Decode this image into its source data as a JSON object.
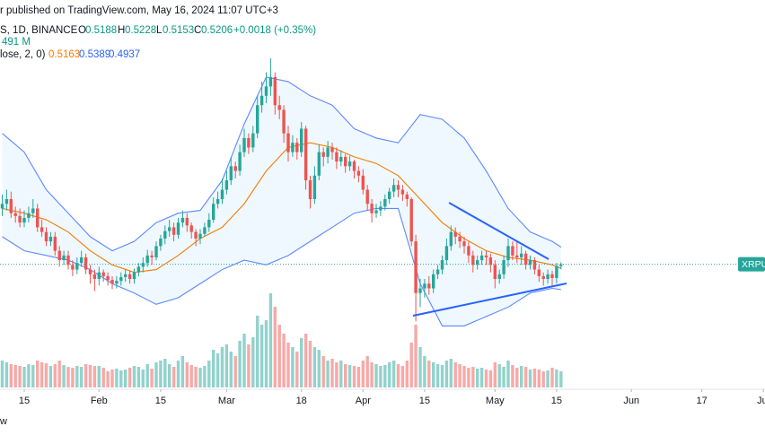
{
  "header": {
    "publisher": "r published on TradingView.com, May 16, 2024 11:07 UTC+3",
    "symbol": "S, 1D, BINANCE",
    "o_label": "O",
    "h_label": "H",
    "l_label": "L",
    "c_label": "C",
    "change": "+0.0018 (+0.35%)",
    "volume": "491 M",
    "bb_label": "lose, 2, 0)",
    "bottom": "w"
  },
  "chart_data": {
    "type": "candlestick",
    "x": [
      "2024-01-10",
      "2024-01-11",
      "2024-01-12",
      "2024-01-13",
      "2024-01-14",
      "2024-01-15",
      "2024-01-16",
      "2024-01-17",
      "2024-01-18",
      "2024-01-19",
      "2024-01-20",
      "2024-01-21",
      "2024-01-22",
      "2024-01-23",
      "2024-01-24",
      "2024-01-25",
      "2024-01-26",
      "2024-01-27",
      "2024-01-28",
      "2024-01-29",
      "2024-01-30",
      "2024-01-31",
      "2024-02-01",
      "2024-02-02",
      "2024-02-03",
      "2024-02-04",
      "2024-02-05",
      "2024-02-06",
      "2024-02-07",
      "2024-02-08",
      "2024-02-09",
      "2024-02-10",
      "2024-02-11",
      "2024-02-12",
      "2024-02-13",
      "2024-02-14",
      "2024-02-15",
      "2024-02-16",
      "2024-02-17",
      "2024-02-18",
      "2024-02-19",
      "2024-02-20",
      "2024-02-21",
      "2024-02-22",
      "2024-02-23",
      "2024-02-24",
      "2024-02-25",
      "2024-02-26",
      "2024-02-27",
      "2024-02-28",
      "2024-02-29",
      "2024-03-01",
      "2024-03-02",
      "2024-03-03",
      "2024-03-04",
      "2024-03-05",
      "2024-03-06",
      "2024-03-07",
      "2024-03-08",
      "2024-03-09",
      "2024-03-10",
      "2024-03-11",
      "2024-03-12",
      "2024-03-13",
      "2024-03-14",
      "2024-03-15",
      "2024-03-16",
      "2024-03-17",
      "2024-03-18",
      "2024-03-19",
      "2024-03-20",
      "2024-03-21",
      "2024-03-22",
      "2024-03-23",
      "2024-03-24",
      "2024-03-25",
      "2024-03-26",
      "2024-03-27",
      "2024-03-28",
      "2024-03-29",
      "2024-03-30",
      "2024-03-31",
      "2024-04-01",
      "2024-04-02",
      "2024-04-03",
      "2024-04-04",
      "2024-04-05",
      "2024-04-06",
      "2024-04-07",
      "2024-04-08",
      "2024-04-09",
      "2024-04-10",
      "2024-04-11",
      "2024-04-12",
      "2024-04-13",
      "2024-04-14",
      "2024-04-15",
      "2024-04-16",
      "2024-04-17",
      "2024-04-18",
      "2024-04-19",
      "2024-04-20",
      "2024-04-21",
      "2024-04-22",
      "2024-04-23",
      "2024-04-24",
      "2024-04-25",
      "2024-04-26",
      "2024-04-27",
      "2024-04-28",
      "2024-04-29",
      "2024-04-30",
      "2024-05-01",
      "2024-05-02",
      "2024-05-03",
      "2024-05-04",
      "2024-05-05",
      "2024-05-06",
      "2024-05-07",
      "2024-05-08",
      "2024-05-09",
      "2024-05-10",
      "2024-05-11",
      "2024-05-12",
      "2024-05-13",
      "2024-05-14",
      "2024-05-15",
      "2024-05-16"
    ],
    "open": [
      0.58,
      0.585,
      0.59,
      0.575,
      0.572,
      0.565,
      0.57,
      0.575,
      0.58,
      0.56,
      0.555,
      0.545,
      0.55,
      0.535,
      0.525,
      0.53,
      0.52,
      0.515,
      0.522,
      0.528,
      0.515,
      0.51,
      0.505,
      0.512,
      0.508,
      0.504,
      0.5,
      0.503,
      0.507,
      0.51,
      0.505,
      0.512,
      0.518,
      0.522,
      0.53,
      0.528,
      0.54,
      0.548,
      0.556,
      0.56,
      0.552,
      0.565,
      0.57,
      0.562,
      0.555,
      0.548,
      0.553,
      0.56,
      0.568,
      0.585,
      0.59,
      0.6,
      0.61,
      0.625,
      0.62,
      0.64,
      0.655,
      0.645,
      0.66,
      0.69,
      0.7,
      0.71,
      0.72,
      0.69,
      0.685,
      0.66,
      0.64,
      0.65,
      0.64,
      0.665,
      0.61,
      0.59,
      0.615,
      0.64,
      0.635,
      0.645,
      0.64,
      0.63,
      0.635,
      0.625,
      0.63,
      0.62,
      0.615,
      0.6,
      0.585,
      0.575,
      0.578,
      0.582,
      0.59,
      0.598,
      0.605,
      0.6,
      0.595,
      0.59,
      0.545,
      0.49,
      0.495,
      0.5,
      0.495,
      0.51,
      0.515,
      0.525,
      0.54,
      0.555,
      0.55,
      0.545,
      0.54,
      0.53,
      0.52,
      0.525,
      0.53,
      0.528,
      0.52,
      0.505,
      0.51,
      0.525,
      0.54,
      0.53,
      0.528,
      0.532,
      0.52,
      0.525,
      0.515,
      0.508,
      0.505,
      0.51,
      0.506,
      0.5188
    ],
    "high": [
      0.595,
      0.6,
      0.598,
      0.582,
      0.58,
      0.578,
      0.582,
      0.59,
      0.585,
      0.568,
      0.56,
      0.555,
      0.555,
      0.54,
      0.535,
      0.535,
      0.525,
      0.528,
      0.535,
      0.532,
      0.52,
      0.515,
      0.518,
      0.515,
      0.512,
      0.508,
      0.508,
      0.512,
      0.515,
      0.514,
      0.516,
      0.522,
      0.528,
      0.536,
      0.535,
      0.545,
      0.552,
      0.562,
      0.568,
      0.565,
      0.57,
      0.578,
      0.575,
      0.565,
      0.558,
      0.558,
      0.565,
      0.575,
      0.592,
      0.598,
      0.612,
      0.62,
      0.635,
      0.63,
      0.648,
      0.665,
      0.66,
      0.668,
      0.7,
      0.715,
      0.725,
      0.74,
      0.725,
      0.7,
      0.69,
      0.668,
      0.658,
      0.655,
      0.672,
      0.668,
      0.615,
      0.625,
      0.648,
      0.645,
      0.652,
      0.65,
      0.645,
      0.642,
      0.638,
      0.636,
      0.632,
      0.625,
      0.622,
      0.605,
      0.59,
      0.585,
      0.588,
      0.595,
      0.602,
      0.612,
      0.61,
      0.605,
      0.598,
      0.592,
      0.552,
      0.505,
      0.505,
      0.508,
      0.515,
      0.52,
      0.53,
      0.548,
      0.562,
      0.56,
      0.555,
      0.55,
      0.545,
      0.535,
      0.53,
      0.535,
      0.535,
      0.532,
      0.525,
      0.515,
      0.53,
      0.548,
      0.545,
      0.545,
      0.54,
      0.535,
      0.53,
      0.528,
      0.52,
      0.512,
      0.515,
      0.514,
      0.522,
      0.5228
    ],
    "low": [
      0.572,
      0.578,
      0.57,
      0.565,
      0.56,
      0.56,
      0.565,
      0.57,
      0.555,
      0.55,
      0.54,
      0.54,
      0.53,
      0.518,
      0.52,
      0.515,
      0.508,
      0.51,
      0.518,
      0.51,
      0.5,
      0.492,
      0.498,
      0.502,
      0.498,
      0.494,
      0.495,
      0.498,
      0.502,
      0.5,
      0.5,
      0.508,
      0.512,
      0.518,
      0.52,
      0.525,
      0.535,
      0.542,
      0.55,
      0.545,
      0.548,
      0.56,
      0.555,
      0.548,
      0.54,
      0.542,
      0.55,
      0.555,
      0.565,
      0.58,
      0.585,
      0.595,
      0.605,
      0.612,
      0.615,
      0.635,
      0.638,
      0.64,
      0.655,
      0.682,
      0.692,
      0.7,
      0.68,
      0.675,
      0.65,
      0.63,
      0.635,
      0.632,
      0.635,
      0.6,
      0.58,
      0.585,
      0.61,
      0.625,
      0.628,
      0.632,
      0.622,
      0.625,
      0.618,
      0.62,
      0.612,
      0.608,
      0.595,
      0.578,
      0.565,
      0.57,
      0.572,
      0.578,
      0.585,
      0.592,
      0.592,
      0.588,
      0.582,
      0.54,
      0.46,
      0.475,
      0.485,
      0.488,
      0.49,
      0.505,
      0.51,
      0.52,
      0.535,
      0.542,
      0.538,
      0.532,
      0.522,
      0.512,
      0.515,
      0.52,
      0.52,
      0.512,
      0.495,
      0.5,
      0.505,
      0.518,
      0.525,
      0.522,
      0.52,
      0.515,
      0.515,
      0.51,
      0.502,
      0.498,
      0.5,
      0.498,
      0.5,
      0.5153
    ],
    "close": [
      0.585,
      0.59,
      0.575,
      0.572,
      0.565,
      0.57,
      0.575,
      0.58,
      0.56,
      0.555,
      0.545,
      0.55,
      0.535,
      0.525,
      0.53,
      0.52,
      0.515,
      0.522,
      0.528,
      0.515,
      0.51,
      0.505,
      0.512,
      0.508,
      0.504,
      0.5,
      0.503,
      0.507,
      0.51,
      0.505,
      0.512,
      0.518,
      0.522,
      0.53,
      0.528,
      0.54,
      0.548,
      0.556,
      0.56,
      0.552,
      0.565,
      0.57,
      0.562,
      0.555,
      0.548,
      0.553,
      0.56,
      0.568,
      0.585,
      0.59,
      0.6,
      0.61,
      0.625,
      0.62,
      0.64,
      0.655,
      0.645,
      0.66,
      0.69,
      0.7,
      0.71,
      0.72,
      0.69,
      0.685,
      0.66,
      0.64,
      0.65,
      0.64,
      0.665,
      0.61,
      0.59,
      0.615,
      0.64,
      0.635,
      0.645,
      0.64,
      0.63,
      0.635,
      0.625,
      0.63,
      0.62,
      0.615,
      0.6,
      0.585,
      0.575,
      0.578,
      0.582,
      0.59,
      0.598,
      0.605,
      0.6,
      0.595,
      0.59,
      0.545,
      0.49,
      0.495,
      0.5,
      0.495,
      0.51,
      0.515,
      0.525,
      0.54,
      0.555,
      0.55,
      0.545,
      0.54,
      0.53,
      0.52,
      0.525,
      0.53,
      0.528,
      0.52,
      0.505,
      0.51,
      0.525,
      0.54,
      0.53,
      0.528,
      0.532,
      0.52,
      0.525,
      0.515,
      0.508,
      0.505,
      0.51,
      0.506,
      0.5188,
      0.5206
    ],
    "volume": [
      300,
      280,
      260,
      250,
      240,
      230,
      260,
      250,
      300,
      280,
      270,
      240,
      260,
      300,
      250,
      230,
      220,
      240,
      230,
      260,
      250,
      240,
      240,
      220,
      180,
      200,
      210,
      190,
      200,
      220,
      240,
      230,
      200,
      260,
      210,
      280,
      300,
      320,
      260,
      230,
      300,
      350,
      280,
      250,
      230,
      220,
      240,
      300,
      420,
      380,
      450,
      480,
      400,
      350,
      520,
      600,
      480,
      560,
      800,
      700,
      750,
      1050,
      900,
      700,
      600,
      500,
      450,
      400,
      550,
      600,
      520,
      450,
      420,
      350,
      300,
      320,
      280,
      300,
      260,
      250,
      240,
      230,
      300,
      350,
      280,
      260,
      240,
      250,
      280,
      300,
      260,
      240,
      300,
      500,
      700,
      450,
      350,
      300,
      280,
      260,
      250,
      300,
      320,
      280,
      260,
      240,
      220,
      230,
      210,
      220,
      200,
      190,
      280,
      260,
      230,
      300,
      250,
      220,
      240,
      230,
      200,
      210,
      200,
      180,
      190,
      220,
      200,
      180
    ],
    "bands": {
      "x": [
        "2024-01-10",
        "2024-01-15",
        "2024-01-20",
        "2024-01-25",
        "2024-01-30",
        "2024-02-04",
        "2024-02-09",
        "2024-02-14",
        "2024-02-19",
        "2024-02-24",
        "2024-02-29",
        "2024-03-05",
        "2024-03-10",
        "2024-03-15",
        "2024-03-20",
        "2024-03-25",
        "2024-03-30",
        "2024-04-04",
        "2024-04-09",
        "2024-04-14",
        "2024-04-19",
        "2024-04-24",
        "2024-04-29",
        "2024-05-04",
        "2024-05-09",
        "2024-05-14",
        "2024-05-16"
      ],
      "upper": [
        0.66,
        0.64,
        0.6,
        0.575,
        0.55,
        0.535,
        0.545,
        0.565,
        0.575,
        0.578,
        0.61,
        0.67,
        0.72,
        0.715,
        0.7,
        0.69,
        0.665,
        0.655,
        0.65,
        0.68,
        0.675,
        0.655,
        0.62,
        0.58,
        0.555,
        0.545,
        0.5389
      ],
      "middle": [
        0.58,
        0.575,
        0.568,
        0.555,
        0.535,
        0.52,
        0.512,
        0.515,
        0.53,
        0.548,
        0.56,
        0.585,
        0.62,
        0.645,
        0.65,
        0.645,
        0.635,
        0.628,
        0.615,
        0.59,
        0.565,
        0.548,
        0.535,
        0.528,
        0.525,
        0.52,
        0.5163
      ],
      "lower": [
        0.55,
        0.535,
        0.53,
        0.525,
        0.515,
        0.5,
        0.49,
        0.478,
        0.485,
        0.5,
        0.515,
        0.525,
        0.52,
        0.53,
        0.545,
        0.56,
        0.575,
        0.58,
        0.58,
        0.5,
        0.455,
        0.455,
        0.465,
        0.475,
        0.49,
        0.495,
        0.4937
      ]
    },
    "ylim": [
      0.4,
      0.78
    ],
    "volume_lim": [
      0,
      2000
    ],
    "xlim": [
      "2024-01-10",
      "2024-07-01"
    ],
    "xticks": [
      {
        "value": "2024-01-15",
        "label": "15"
      },
      {
        "value": "2024-02-01",
        "label": "Feb"
      },
      {
        "value": "2024-02-15",
        "label": "15"
      },
      {
        "value": "2024-03-01",
        "label": "Mar"
      },
      {
        "value": "2024-03-18",
        "label": "18"
      },
      {
        "value": "2024-04-01",
        "label": "Apr"
      },
      {
        "value": "2024-04-15",
        "label": "15"
      },
      {
        "value": "2024-05-01",
        "label": "May"
      },
      {
        "value": "2024-05-15",
        "label": "15"
      },
      {
        "value": "2024-06-01",
        "label": "Jun"
      },
      {
        "value": "2024-06-17",
        "label": "17"
      },
      {
        "value": "2024-07-01",
        "label": "Jul"
      }
    ],
    "last_label": "XRPUS",
    "colors": {
      "up": "#26a69a",
      "down": "#ef5350",
      "upper": "#2962ff",
      "middle": "#f57c00",
      "lower": "#2962ff",
      "band_fill": "#2196f3"
    }
  }
}
